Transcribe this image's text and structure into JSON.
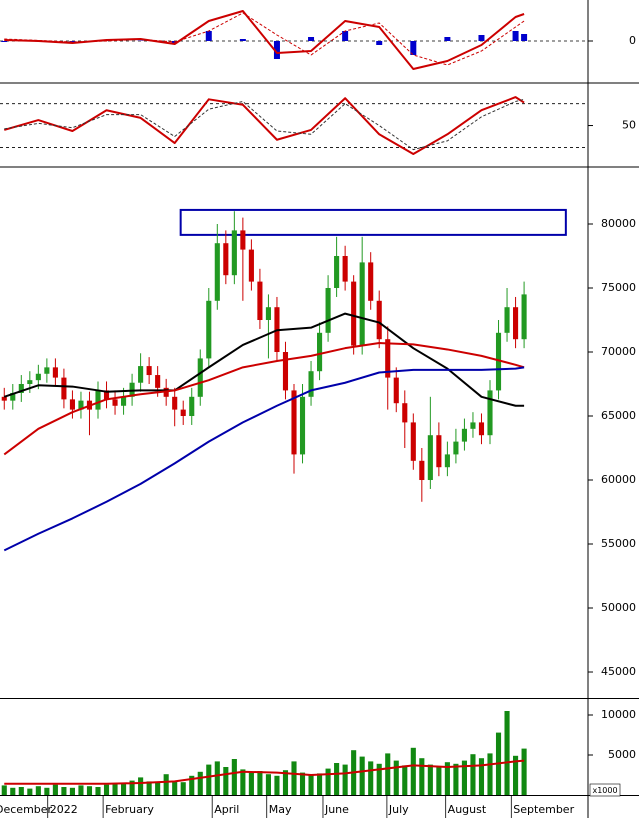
{
  "chart_data": [
    {
      "type": "line",
      "xlim": [
        -0.5,
        68.5
      ],
      "ylim": [
        -2050,
        2050
      ],
      "yticks": [
        0
      ],
      "levels": [
        0
      ],
      "series": [
        {
          "style": "bar",
          "color": "#0000cc",
          "x": [
            0,
            4,
            8,
            12,
            16,
            20,
            24,
            28,
            32,
            36,
            40,
            44,
            48,
            52,
            56,
            60,
            61
          ],
          "values": [
            -50,
            -30,
            -50,
            50,
            20,
            -100,
            500,
            100,
            -900,
            200,
            500,
            -200,
            -700,
            200,
            300,
            500,
            350
          ]
        },
        {
          "color": "#cc0000",
          "x": [
            0,
            4,
            8,
            12,
            16,
            20,
            24,
            28,
            32,
            36,
            40,
            44,
            48,
            52,
            56,
            60,
            61
          ],
          "values": [
            50,
            0,
            -100,
            50,
            100,
            -150,
            1000,
            1500,
            -600,
            -500,
            1000,
            700,
            -1400,
            -1000,
            -200,
            1200,
            1350
          ]
        },
        {
          "color": "#cc0000",
          "dash": true,
          "x": [
            0,
            4,
            8,
            12,
            16,
            20,
            24,
            28,
            32,
            36,
            40,
            44,
            48,
            52,
            56,
            60,
            61
          ],
          "values": [
            100,
            30,
            -50,
            0,
            80,
            -50,
            500,
            1400,
            300,
            -700,
            500,
            900,
            -700,
            -1200,
            -500,
            700,
            1000
          ]
        }
      ]
    },
    {
      "type": "line",
      "xlim": [
        -0.5,
        68.5
      ],
      "ylim": [
        13,
        88
      ],
      "yticks": [
        50
      ],
      "levels": [
        30,
        70
      ],
      "series": [
        {
          "color": "#cc0000",
          "x": [
            0,
            4,
            8,
            12,
            16,
            20,
            24,
            28,
            32,
            36,
            40,
            44,
            48,
            52,
            56,
            60,
            61
          ],
          "values": [
            46,
            55,
            45,
            64,
            57,
            34,
            74,
            69,
            37,
            46,
            75,
            42,
            24,
            42,
            64,
            76,
            71
          ]
        },
        {
          "color": "#333333",
          "dash": true,
          "x": [
            0,
            4,
            8,
            12,
            16,
            20,
            24,
            28,
            32,
            36,
            40,
            44,
            48,
            52,
            56,
            60,
            61
          ],
          "values": [
            47,
            52,
            48,
            60,
            60,
            40,
            65,
            72,
            45,
            42,
            70,
            50,
            28,
            36,
            58,
            72,
            74
          ]
        }
      ]
    },
    {
      "type": "candlestick",
      "xlim": [
        -0.5,
        68.5
      ],
      "ylim": [
        42970,
        84375
      ],
      "yticks": [
        45000,
        50000,
        55000,
        60000,
        65000,
        70000,
        75000,
        80000
      ],
      "up_color": "#229922",
      "down_color": "#cc0000",
      "open": [
        66500,
        66200,
        66800,
        67500,
        67800,
        68300,
        68800,
        68000,
        66300,
        65500,
        66200,
        65500,
        67000,
        66300,
        65800,
        66500,
        67600,
        68900,
        68200,
        67200,
        66500,
        65500,
        65000,
        66500,
        69500,
        74000,
        78500,
        76000,
        79500,
        78000,
        75500,
        72500,
        73500,
        70000,
        67000,
        62000,
        66500,
        68500,
        71500,
        75000,
        77500,
        75500,
        70500,
        77000,
        74000,
        71000,
        68000,
        66000,
        64500,
        61500,
        60000,
        63500,
        61000,
        62000,
        63000,
        64000,
        64500,
        63500,
        67000,
        71500,
        73500,
        71000
      ],
      "high": [
        67200,
        67500,
        68200,
        68500,
        69000,
        69500,
        69500,
        68700,
        67000,
        66900,
        66900,
        67700,
        67700,
        67000,
        67200,
        68300,
        69900,
        69600,
        68900,
        67900,
        67200,
        66200,
        67200,
        70200,
        75000,
        80000,
        79500,
        81000,
        80500,
        78800,
        76500,
        74500,
        74300,
        70800,
        67500,
        67500,
        69300,
        72300,
        76000,
        79000,
        78300,
        76000,
        79000,
        77800,
        74800,
        72000,
        68800,
        67000,
        65200,
        62500,
        66500,
        64500,
        63000,
        64000,
        64800,
        65300,
        65200,
        67800,
        72500,
        75000,
        74300,
        75500
      ],
      "low": [
        65500,
        65500,
        66100,
        66800,
        67100,
        67600,
        67300,
        65600,
        64800,
        64800,
        63500,
        64800,
        65600,
        65100,
        65100,
        65800,
        66900,
        67500,
        66500,
        65800,
        64200,
        64300,
        64300,
        65800,
        68800,
        73300,
        75300,
        75300,
        74000,
        74800,
        71800,
        69500,
        69300,
        66300,
        60500,
        61300,
        65800,
        67800,
        70800,
        74300,
        74800,
        69800,
        69800,
        73300,
        70300,
        65500,
        65300,
        62500,
        60800,
        58300,
        59300,
        60300,
        60300,
        61300,
        62300,
        63300,
        62800,
        62800,
        66300,
        70800,
        70300,
        70300
      ],
      "close": [
        66200,
        66800,
        67500,
        67800,
        68300,
        68800,
        68000,
        66300,
        65500,
        66200,
        65500,
        67000,
        66300,
        65800,
        66500,
        67600,
        68900,
        68200,
        67200,
        66500,
        65500,
        65000,
        66500,
        69500,
        74000,
        78500,
        76000,
        79500,
        78000,
        75500,
        72500,
        73500,
        70000,
        67000,
        62000,
        66500,
        68500,
        71500,
        75000,
        77500,
        75500,
        70500,
        77000,
        74000,
        71000,
        68000,
        66000,
        64500,
        61500,
        60000,
        63500,
        61000,
        62000,
        63000,
        64000,
        64500,
        63500,
        67000,
        71500,
        73500,
        71000,
        74500
      ],
      "series": [
        {
          "color": "#000000",
          "x": [
            0,
            4,
            8,
            12,
            16,
            20,
            24,
            28,
            32,
            36,
            40,
            44,
            48,
            52,
            56,
            60,
            61
          ],
          "values": [
            66500,
            67400,
            67300,
            66900,
            67000,
            67000,
            68800,
            70550,
            71700,
            71900,
            73000,
            72300,
            70300,
            68700,
            66500,
            65800,
            65800
          ]
        },
        {
          "color": "#cc0000",
          "x": [
            0,
            4,
            8,
            12,
            16,
            20,
            24,
            28,
            32,
            36,
            40,
            44,
            48,
            52,
            56,
            60,
            61
          ],
          "values": [
            62000,
            64000,
            65300,
            66300,
            66700,
            67000,
            67800,
            68800,
            69300,
            69700,
            70300,
            70700,
            70600,
            70200,
            69700,
            69000,
            68800
          ]
        },
        {
          "color": "#0000aa",
          "x": [
            0,
            4,
            8,
            12,
            16,
            20,
            24,
            28,
            32,
            36,
            40,
            44,
            48,
            52,
            56,
            60,
            61
          ],
          "values": [
            54500,
            55800,
            57000,
            58300,
            59700,
            61300,
            63000,
            64500,
            65800,
            67000,
            67600,
            68400,
            68600,
            68600,
            68600,
            68700,
            68800
          ]
        }
      ],
      "box": {
        "color": "#0000aa",
        "x": [
          20.7,
          65.9
        ],
        "y": [
          79150,
          81100
        ]
      }
    },
    {
      "type": "bar",
      "xlim": [
        -0.5,
        68.5
      ],
      "ylim": [
        0,
        12000
      ],
      "yticks": [
        5000,
        10000
      ],
      "color": "#118811",
      "values": [
        1200,
        900,
        1000,
        800,
        1100,
        900,
        1300,
        1000,
        900,
        1200,
        1100,
        1000,
        1300,
        1500,
        1400,
        1800,
        2200,
        1700,
        1500,
        2600,
        1800,
        1600,
        2400,
        2900,
        3800,
        4200,
        3500,
        4500,
        3200,
        2800,
        3000,
        2600,
        2400,
        3100,
        4200,
        2800,
        2500,
        2700,
        3300,
        4000,
        3800,
        5600,
        4800,
        4200,
        3900,
        5200,
        4300,
        3700,
        5900,
        4600,
        3800,
        3500,
        4100,
        3900,
        4300,
        5100,
        4600,
        5200,
        7800,
        10500,
        4900,
        5800
      ],
      "series": [
        {
          "color": "#cc0000",
          "x": [
            0,
            4,
            8,
            12,
            16,
            20,
            24,
            28,
            32,
            36,
            40,
            44,
            48,
            52,
            56,
            60,
            61
          ],
          "values": [
            1400,
            1400,
            1400,
            1400,
            1500,
            1700,
            2300,
            2900,
            2800,
            2500,
            2700,
            3200,
            3700,
            3500,
            3700,
            4200,
            4300
          ]
        }
      ],
      "unit_label": "x1000",
      "xticks": [
        {
          "value": -1.32,
          "label": "December"
        },
        {
          "value": 5.1,
          "label": "2022"
        },
        {
          "value": 11.6,
          "label": "February"
        },
        {
          "value": 24.4,
          "label": "April"
        },
        {
          "value": 30.8,
          "label": "May"
        },
        {
          "value": 37.4,
          "label": "June"
        },
        {
          "value": 44.9,
          "label": "July"
        },
        {
          "value": 51.8,
          "label": "August"
        },
        {
          "value": 59.5,
          "label": "September"
        }
      ]
    }
  ]
}
